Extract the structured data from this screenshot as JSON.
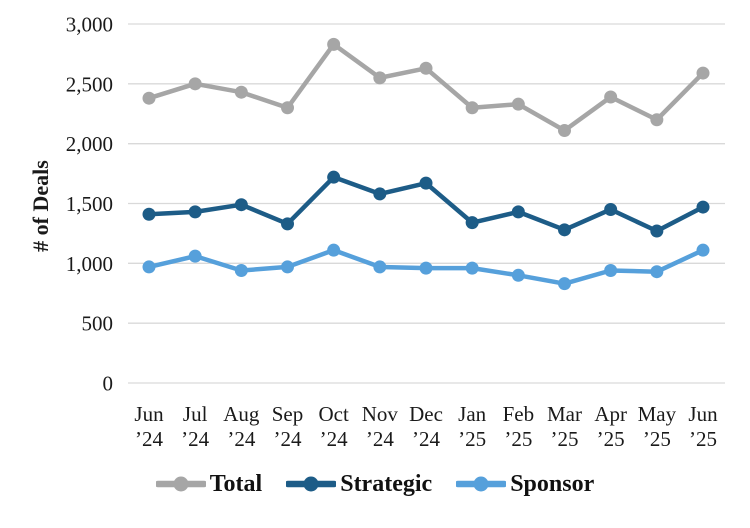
{
  "chart_data": {
    "type": "line",
    "title": "",
    "xlabel": "",
    "ylabel": "# of Deals",
    "ylim": [
      0,
      3000
    ],
    "ytick_step": 500,
    "y_tick_labels": [
      "0",
      "500",
      "1,000",
      "1,500",
      "2,000",
      "2,500",
      "3,000"
    ],
    "grid": true,
    "legend_position": "bottom",
    "categories": [
      "Jun ’24",
      "Jul ’24",
      "Aug ’24",
      "Sep ’24",
      "Oct ’24",
      "Nov ’24",
      "Dec ’24",
      "Jan ’25",
      "Feb ’25",
      "Mar ’25",
      "Apr ’25",
      "May ’25",
      "Jun ’25"
    ],
    "series": [
      {
        "name": "Total",
        "color": "#a6a6a6",
        "values": [
          2380,
          2500,
          2430,
          2300,
          2830,
          2550,
          2630,
          2300,
          2330,
          2110,
          2390,
          2200,
          2590
        ]
      },
      {
        "name": "Strategic",
        "color": "#1d5c87",
        "values": [
          1410,
          1430,
          1490,
          1330,
          1720,
          1580,
          1670,
          1340,
          1430,
          1280,
          1450,
          1270,
          1470
        ]
      },
      {
        "name": "Sponsor",
        "color": "#56a0db",
        "values": [
          970,
          1060,
          940,
          970,
          1110,
          970,
          960,
          960,
          900,
          830,
          940,
          930,
          1110
        ]
      }
    ]
  }
}
